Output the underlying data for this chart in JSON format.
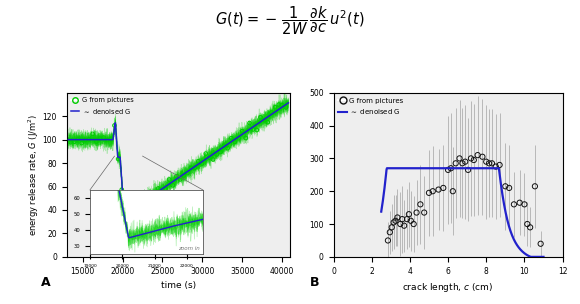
{
  "panel_A": {
    "xlabel": "time (s)",
    "ylabel": "energy release rate, $G$ (J/m$^2$)",
    "xlim": [
      13000,
      41000
    ],
    "ylim": [
      0,
      140
    ],
    "yticks": [
      0,
      20,
      40,
      60,
      80,
      100,
      120
    ],
    "xticks": [
      15000,
      20000,
      25000,
      30000,
      35000,
      40000
    ],
    "label": "A",
    "bg_color": "#eeeeee"
  },
  "panel_B": {
    "xlabel": "crack length, $c$ (cm)",
    "xlim": [
      0,
      12
    ],
    "ylim": [
      0,
      500
    ],
    "yticks": [
      0,
      100,
      200,
      300,
      400,
      500
    ],
    "xticks": [
      0,
      2,
      4,
      6,
      8,
      10,
      12
    ],
    "label": "B",
    "bg_color": "#eeeeee"
  },
  "fig_bg": "#ffffff",
  "green_color": "#00cc00",
  "blue_color": "#2222cc",
  "dark_color": "#111111",
  "gray_color": "#888888",
  "crack_lengths": [
    2.85,
    2.95,
    3.05,
    3.15,
    3.25,
    3.35,
    3.5,
    3.6,
    3.7,
    3.85,
    3.95,
    4.05,
    4.2,
    4.35,
    4.55,
    4.75,
    5.0,
    5.2,
    5.5,
    5.75,
    6.0,
    6.15,
    6.25,
    6.4,
    6.6,
    6.75,
    6.9,
    7.05,
    7.2,
    7.35,
    7.55,
    7.8,
    8.0,
    8.15,
    8.3,
    8.5,
    8.7,
    9.0,
    9.2,
    9.45,
    9.75,
    10.0,
    10.15,
    10.3,
    10.55,
    10.85
  ],
  "G_vals_B": [
    50,
    75,
    90,
    105,
    110,
    120,
    100,
    115,
    95,
    115,
    130,
    110,
    100,
    135,
    160,
    135,
    195,
    200,
    205,
    210,
    265,
    270,
    200,
    285,
    300,
    285,
    290,
    265,
    300,
    295,
    310,
    305,
    290,
    285,
    285,
    275,
    280,
    215,
    210,
    160,
    165,
    160,
    100,
    90,
    215,
    40
  ],
  "err_B": [
    100,
    120,
    130,
    150,
    140,
    160,
    175,
    185,
    145,
    165,
    180,
    165,
    155,
    180,
    220,
    200,
    240,
    250,
    225,
    240,
    300,
    305,
    245,
    305,
    325,
    305,
    315,
    285,
    320,
    310,
    330,
    320,
    315,
    300,
    300,
    290,
    290,
    240,
    235,
    180,
    180,
    175,
    120,
    110,
    230,
    70
  ]
}
